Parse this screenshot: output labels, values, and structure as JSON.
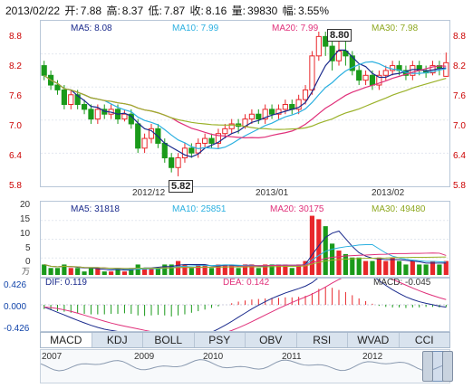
{
  "header": {
    "date": "2013/02/22",
    "open_label": "开:",
    "open": "7.88",
    "high_label": "高:",
    "high": "8.37",
    "low_label": "低:",
    "low": "7.87",
    "close_label": "收:",
    "close": "8.16",
    "volume_label": "量:",
    "volume": "39830",
    "change_label": "幅:",
    "change": "3.55%"
  },
  "price_ma": {
    "ma5": "MA5: 8.08",
    "ma10": "MA10: 7.99",
    "ma20": "MA20: 7.99",
    "ma30": "MA30: 7.98"
  },
  "price_axis": [
    "8.8",
    "8.2",
    "7.6",
    "7.0",
    "6.4",
    "5.8"
  ],
  "x_ticks": [
    "2012/12",
    "2013/01",
    "2013/02"
  ],
  "callouts": {
    "high": "8.80",
    "low": "5.82"
  },
  "vol_ma": {
    "ma5": "MA5: 31818",
    "ma10": "MA10: 25851",
    "ma20": "MA20: 30175",
    "ma30": "MA30: 49480"
  },
  "vol_axis": [
    "20",
    "15",
    "10",
    "5",
    "0"
  ],
  "vol_unit": "万",
  "macd": {
    "dif": "DIF: 0.119",
    "dea": "DEA: 0.142",
    "macd": "MACD: -0.045"
  },
  "macd_axis": [
    "0.426",
    "0.000",
    "-0.426"
  ],
  "tabs": [
    "MACD",
    "KDJ",
    "BOLL",
    "PSY",
    "OBV",
    "RSI",
    "WVAD",
    "CCI"
  ],
  "active_tab": "MACD",
  "years": [
    "2007",
    "2009",
    "2010",
    "2011",
    "2012"
  ],
  "colors": {
    "up": "#e8272b",
    "down": "#1a9a1a",
    "ma5": "#1a2a8c",
    "ma10": "#2bb0e0",
    "ma20": "#e0307a",
    "ma30": "#9bb22a"
  },
  "chart_data": {
    "type": "candlestick",
    "ylim": [
      5.8,
      8.8
    ],
    "candles": [
      [
        8.1,
        7.9,
        8.2,
        7.8
      ],
      [
        7.9,
        7.7,
        8.0,
        7.6
      ],
      [
        7.7,
        7.6,
        7.8,
        7.5
      ],
      [
        7.6,
        7.3,
        7.7,
        7.2
      ],
      [
        7.3,
        7.5,
        7.6,
        7.2
      ],
      [
        7.5,
        7.3,
        7.6,
        7.2
      ],
      [
        7.3,
        7.2,
        7.4,
        7.1
      ],
      [
        7.2,
        7.0,
        7.3,
        6.9
      ],
      [
        7.0,
        7.2,
        7.3,
        6.9
      ],
      [
        7.2,
        7.1,
        7.3,
        7.0
      ],
      [
        7.1,
        7.2,
        7.3,
        7.0
      ],
      [
        7.2,
        7.0,
        7.3,
        6.9
      ],
      [
        7.0,
        7.1,
        7.2,
        6.95
      ],
      [
        7.1,
        6.9,
        7.2,
        6.8
      ],
      [
        6.9,
        6.4,
        7.0,
        6.3
      ],
      [
        6.4,
        6.6,
        6.7,
        6.3
      ],
      [
        6.6,
        6.8,
        6.9,
        6.5
      ],
      [
        6.8,
        6.5,
        6.9,
        6.4
      ],
      [
        6.5,
        6.2,
        6.6,
        6.1
      ],
      [
        6.2,
        6.0,
        6.3,
        5.9
      ],
      [
        6.0,
        6.2,
        6.3,
        5.82
      ],
      [
        6.2,
        6.4,
        6.5,
        6.1
      ],
      [
        6.4,
        6.3,
        6.5,
        6.2
      ],
      [
        6.3,
        6.5,
        6.6,
        6.2
      ],
      [
        6.5,
        6.6,
        6.7,
        6.4
      ],
      [
        6.6,
        6.5,
        6.7,
        6.4
      ],
      [
        6.5,
        6.7,
        6.8,
        6.4
      ],
      [
        6.7,
        6.8,
        6.9,
        6.6
      ],
      [
        6.8,
        6.9,
        7.0,
        6.7
      ],
      [
        6.9,
        6.85,
        7.0,
        6.7
      ],
      [
        6.85,
        7.0,
        7.1,
        6.8
      ],
      [
        7.0,
        7.1,
        7.2,
        6.9
      ],
      [
        7.1,
        7.0,
        7.2,
        6.9
      ],
      [
        7.0,
        7.2,
        7.3,
        6.9
      ],
      [
        7.2,
        7.1,
        7.3,
        7.0
      ],
      [
        7.1,
        7.2,
        7.3,
        7.0
      ],
      [
        7.2,
        7.3,
        7.4,
        7.1
      ],
      [
        7.3,
        7.2,
        7.4,
        7.1
      ],
      [
        7.2,
        7.4,
        7.5,
        7.1
      ],
      [
        7.4,
        7.6,
        7.7,
        7.3
      ],
      [
        7.6,
        8.3,
        8.4,
        7.5
      ],
      [
        8.3,
        8.7,
        8.8,
        8.2
      ],
      [
        8.7,
        8.5,
        8.8,
        8.3
      ],
      [
        8.5,
        8.2,
        8.6,
        8.0
      ],
      [
        8.2,
        8.4,
        8.6,
        8.1
      ],
      [
        8.4,
        8.3,
        8.6,
        8.1
      ],
      [
        8.3,
        8.0,
        8.4,
        7.9
      ],
      [
        8.0,
        7.8,
        8.1,
        7.7
      ],
      [
        7.8,
        7.9,
        8.0,
        7.7
      ],
      [
        7.9,
        7.7,
        8.0,
        7.6
      ],
      [
        7.7,
        7.9,
        8.0,
        7.6
      ],
      [
        7.9,
        8.0,
        8.1,
        7.8
      ],
      [
        8.0,
        8.1,
        8.2,
        7.9
      ],
      [
        8.1,
        8.0,
        8.2,
        7.9
      ],
      [
        8.0,
        7.9,
        8.1,
        7.8
      ],
      [
        7.9,
        8.1,
        8.2,
        7.8
      ],
      [
        8.1,
        8.0,
        8.2,
        7.9
      ],
      [
        8.0,
        7.95,
        8.1,
        7.85
      ],
      [
        7.95,
        8.1,
        8.2,
        7.9
      ],
      [
        8.1,
        8.05,
        8.2,
        7.9
      ],
      [
        7.88,
        8.16,
        8.37,
        7.87
      ]
    ],
    "volumes": [
      3,
      2,
      2,
      3,
      2,
      2,
      1,
      2,
      2,
      1,
      1,
      2,
      1,
      2,
      3,
      2,
      2,
      2,
      3,
      3,
      4,
      3,
      2,
      3,
      3,
      2,
      3,
      3,
      3,
      2,
      3,
      3,
      2,
      3,
      3,
      3,
      3,
      2,
      3,
      4,
      17,
      16,
      14,
      9,
      7,
      6,
      5,
      5,
      4,
      4,
      5,
      4,
      5,
      4,
      3,
      4,
      3,
      3,
      4,
      3,
      4
    ],
    "macd_bars": [
      -0.08,
      -0.1,
      -0.12,
      -0.13,
      -0.15,
      -0.16,
      -0.17,
      -0.18,
      -0.18,
      -0.18,
      -0.17,
      -0.17,
      -0.16,
      -0.17,
      -0.2,
      -0.21,
      -0.2,
      -0.19,
      -0.2,
      -0.22,
      -0.2,
      -0.18,
      -0.15,
      -0.12,
      -0.09,
      -0.06,
      -0.03,
      0.0,
      0.03,
      0.06,
      0.08,
      0.1,
      0.11,
      0.12,
      0.13,
      0.13,
      0.14,
      0.14,
      0.15,
      0.17,
      0.22,
      0.3,
      0.34,
      0.32,
      0.28,
      0.24,
      0.18,
      0.12,
      0.07,
      0.02,
      -0.02,
      -0.04,
      -0.05,
      -0.05,
      -0.06,
      -0.05,
      -0.05,
      -0.04,
      -0.04,
      -0.05,
      -0.045
    ]
  }
}
